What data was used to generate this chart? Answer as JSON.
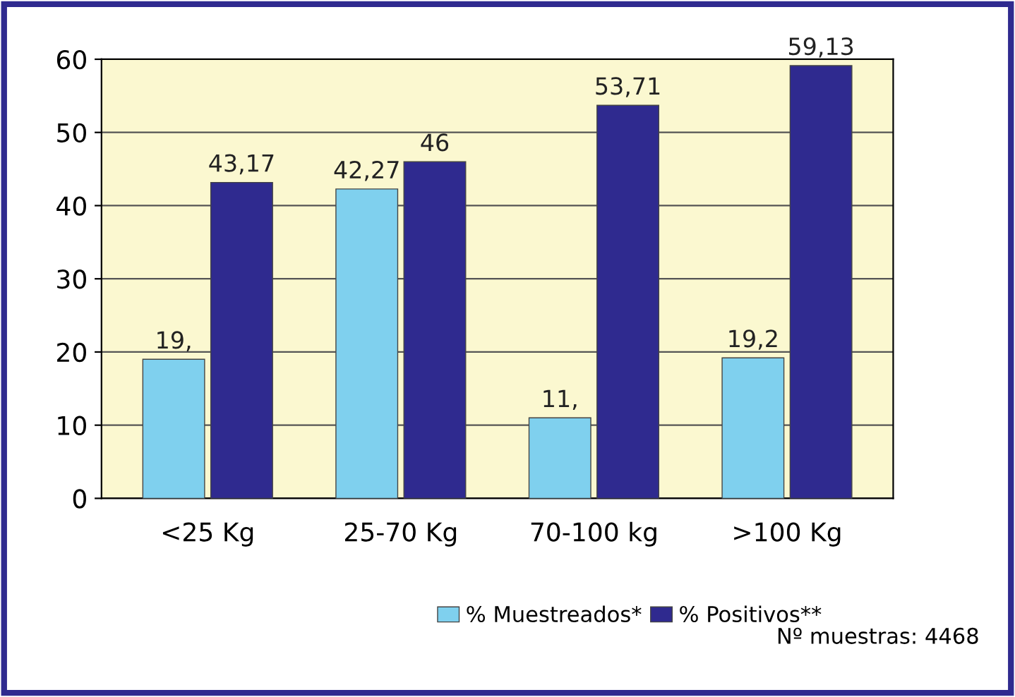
{
  "chart_data": {
    "type": "bar",
    "categories": [
      "<25 Kg",
      "25-70 Kg",
      "70-100 kg",
      ">100 Kg"
    ],
    "series": [
      {
        "name": "% Muestreados*",
        "color": "#7fd0ee",
        "values": [
          19,
          42.27,
          11,
          19.2
        ],
        "value_labels": [
          "19,",
          "42,27",
          "11,",
          "19,2"
        ]
      },
      {
        "name": "% Positivos**",
        "color": "#2f2a8f",
        "values": [
          43.17,
          46,
          53.71,
          59.13
        ],
        "value_labels": [
          "43,17",
          "46",
          "53,71",
          "59,13"
        ]
      }
    ],
    "ylim": [
      0,
      60
    ],
    "yticks": [
      0,
      10,
      20,
      30,
      40,
      50,
      60
    ],
    "grid": "y",
    "legend": "bottom",
    "annotations": [
      "Nº muestras: 4468"
    ]
  }
}
